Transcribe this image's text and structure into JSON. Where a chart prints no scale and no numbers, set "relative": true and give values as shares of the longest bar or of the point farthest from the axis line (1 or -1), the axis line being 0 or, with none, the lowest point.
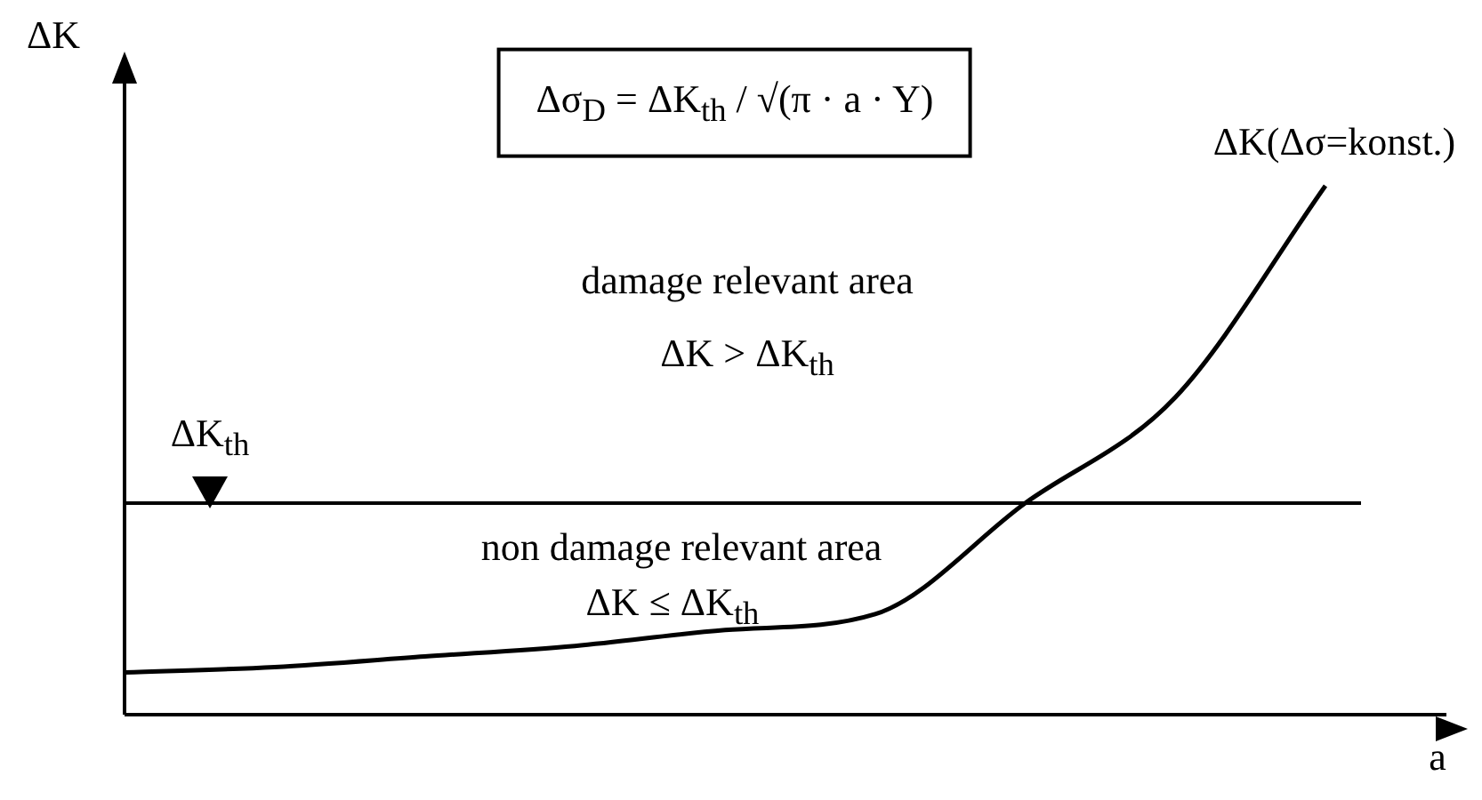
{
  "chart_data": {
    "type": "line",
    "relative": true,
    "xlabel": "a",
    "ylabel": "ΔK",
    "categories": [
      null,
      null,
      null,
      null,
      null,
      null,
      null,
      null,
      null
    ],
    "series": [
      {
        "name": "ΔK(Δσ=konst.)",
        "color": "#000000",
        "values": [
          0.08,
          0.09,
          0.11,
          0.13,
          0.16,
          0.19,
          0.4,
          0.6,
          1
        ]
      }
    ],
    "ref_lines": [
      {
        "axis": "y",
        "value": 0.4,
        "label": "ΔK$_{th}$",
        "color": "#000000"
      }
    ],
    "annotations": [
      "Δσ$_{D}$ = ΔK$_{th}$ / √(π · a · Y)",
      "damage relevant area",
      "ΔK  >  ΔK$_{th}$",
      "non damage relevant area",
      "ΔK  ≤  ΔK$_{th}$"
    ],
    "legend": false,
    "grid": false,
    "marker": "none",
    "line_style": "solid"
  }
}
